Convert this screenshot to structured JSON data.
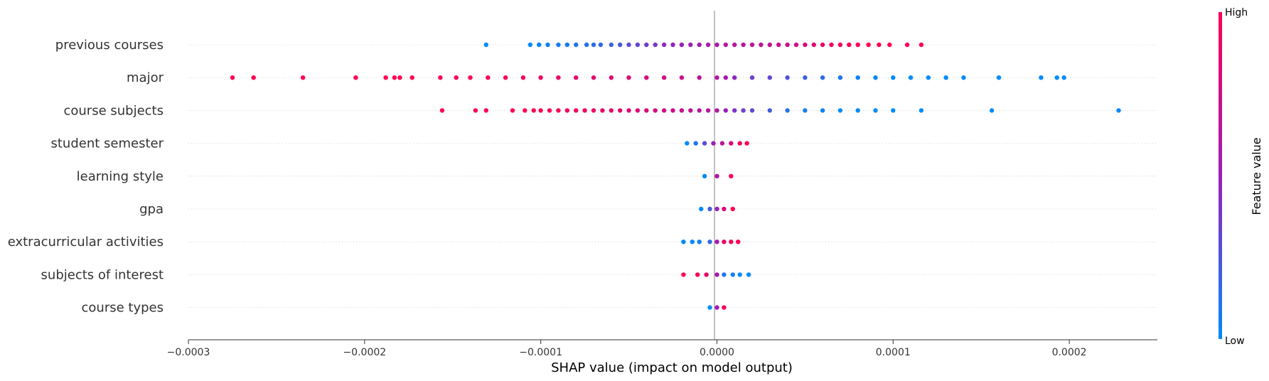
{
  "chart_data": {
    "type": "scatter",
    "subtype": "shap-beeswarm",
    "features": [
      "previous courses",
      "major",
      "course subjects",
      "student semester",
      "learning style",
      "gpa",
      "extracurricular activities",
      "subjects of interest",
      "course types"
    ],
    "xlabel": "SHAP value (impact on model output)",
    "xlim": [
      -0.0003,
      0.00025
    ],
    "xticks": [
      -0.0003,
      -0.0002,
      -0.0001,
      0.0,
      0.0001,
      0.0002
    ],
    "xtick_labels": [
      "−0.0003",
      "−0.0002",
      "−0.0001",
      "0.0000",
      "0.0001",
      "0.0002"
    ],
    "colorbar": {
      "title": "Feature value",
      "high_label": "High",
      "low_label": "Low",
      "low_color": "#008bfb",
      "mid_color": "#9b1fb8",
      "high_color": "#ff0052"
    },
    "grid": "dotted horizontal",
    "series": [
      {
        "values": [
          -0.000131,
          -0.000106,
          -0.000101,
          -9.6e-05,
          -9e-05,
          -8.5e-05,
          -8e-05,
          -7.4e-05,
          -7e-05,
          -6.6e-05,
          -6e-05,
          -5.5e-05,
          -5e-05,
          -4.5e-05,
          -4e-05,
          -3.5e-05,
          -3e-05,
          -2.5e-05,
          -2e-05,
          -1.5e-05,
          -1e-05,
          -5e-06,
          0.0,
          5e-06,
          1e-05,
          1.5e-05,
          2e-05,
          2.5e-05,
          3e-05,
          3.5e-05,
          4e-05,
          4.5e-05,
          5e-05,
          5.5e-05,
          6e-05,
          6.5e-05,
          7e-05,
          7.5e-05,
          8e-05,
          8.6e-05,
          9.2e-05,
          9.8e-05,
          0.000108,
          0.000116
        ],
        "feature_values": [
          0.0,
          0.0,
          0.02,
          0.04,
          0.06,
          0.08,
          0.1,
          0.12,
          0.14,
          0.16,
          0.2,
          0.24,
          0.28,
          0.32,
          0.36,
          0.4,
          0.44,
          0.47,
          0.5,
          0.52,
          0.54,
          0.56,
          0.58,
          0.6,
          0.62,
          0.64,
          0.66,
          0.68,
          0.7,
          0.72,
          0.74,
          0.76,
          0.8,
          0.84,
          0.88,
          0.92,
          0.94,
          0.96,
          0.98,
          1.0,
          1.0,
          1.0,
          1.0,
          1.0
        ]
      },
      {
        "values": [
          -0.000275,
          -0.000263,
          -0.000235,
          -0.000205,
          -0.000188,
          -0.000183,
          -0.00018,
          -0.000173,
          -0.000157,
          -0.000148,
          -0.00014,
          -0.00013,
          -0.00012,
          -0.00011,
          -0.0001,
          -9e-05,
          -8e-05,
          -7e-05,
          -6e-05,
          -5e-05,
          -4e-05,
          -3e-05,
          -2e-05,
          -1e-05,
          0.0,
          5e-06,
          1e-05,
          2e-05,
          3e-05,
          4e-05,
          5e-05,
          6e-05,
          7e-05,
          8e-05,
          9e-05,
          0.0001,
          0.00011,
          0.00012,
          0.00013,
          0.00014,
          0.00016,
          0.000184,
          0.000193,
          0.000197
        ],
        "feature_values": [
          1.0,
          1.0,
          1.0,
          1.0,
          1.0,
          1.0,
          1.0,
          1.0,
          1.0,
          1.0,
          1.0,
          0.98,
          0.96,
          0.94,
          0.92,
          0.9,
          0.88,
          0.86,
          0.84,
          0.82,
          0.8,
          0.76,
          0.72,
          0.68,
          0.6,
          0.55,
          0.45,
          0.35,
          0.3,
          0.25,
          0.2,
          0.15,
          0.1,
          0.05,
          0.02,
          0.0,
          0.0,
          0.0,
          0.0,
          0.0,
          0.0,
          0.0,
          0.0,
          0.0
        ]
      },
      {
        "values": [
          -0.000156,
          -0.000137,
          -0.000131,
          -0.000116,
          -0.000109,
          -0.000104,
          -0.0001,
          -9.5e-05,
          -9e-05,
          -8.5e-05,
          -8e-05,
          -7.5e-05,
          -7e-05,
          -6.5e-05,
          -6e-05,
          -5.5e-05,
          -5e-05,
          -4.5e-05,
          -4e-05,
          -3.5e-05,
          -3e-05,
          -2.5e-05,
          -2e-05,
          -1.5e-05,
          -1e-05,
          -5e-06,
          0.0,
          5e-06,
          1e-05,
          1.5e-05,
          2e-05,
          3e-05,
          4e-05,
          5e-05,
          6e-05,
          7e-05,
          8e-05,
          9e-05,
          0.0001,
          0.000116,
          0.000156,
          0.000228
        ],
        "feature_values": [
          1.0,
          1.0,
          1.0,
          1.0,
          1.0,
          1.0,
          1.0,
          0.98,
          0.96,
          0.95,
          0.94,
          0.93,
          0.92,
          0.9,
          0.88,
          0.86,
          0.84,
          0.82,
          0.8,
          0.78,
          0.76,
          0.74,
          0.72,
          0.7,
          0.68,
          0.65,
          0.6,
          0.5,
          0.4,
          0.35,
          0.3,
          0.2,
          0.12,
          0.06,
          0.02,
          0.0,
          0.0,
          0.0,
          0.0,
          0.0,
          0.0,
          0.0
        ]
      },
      {
        "values": [
          -1.7e-05,
          -1.2e-05,
          -7e-06,
          -2e-06,
          3e-06,
          8e-06,
          1.3e-05,
          1.7e-05
        ],
        "feature_values": [
          0.0,
          0.1,
          0.3,
          0.5,
          0.65,
          0.8,
          0.92,
          1.0
        ]
      },
      {
        "values": [
          -7e-06,
          0.0,
          8e-06
        ],
        "feature_values": [
          0.0,
          0.6,
          1.0
        ]
      },
      {
        "values": [
          -9e-06,
          -4e-06,
          0.0,
          4e-06,
          9e-06
        ],
        "feature_values": [
          0.0,
          0.2,
          0.5,
          0.8,
          1.0
        ]
      },
      {
        "values": [
          -1.9e-05,
          -1.4e-05,
          -1e-05,
          -4e-06,
          0.0,
          4e-06,
          8e-06,
          1.2e-05
        ],
        "feature_values": [
          0.0,
          0.0,
          0.05,
          0.15,
          0.55,
          0.9,
          0.95,
          1.0
        ]
      },
      {
        "values": [
          -1.9e-05,
          -1.1e-05,
          -6e-06,
          0.0,
          4e-06,
          9e-06,
          1.3e-05,
          1.8e-05
        ],
        "feature_values": [
          1.0,
          0.95,
          0.9,
          0.55,
          0.1,
          0.05,
          0.0,
          0.0
        ]
      },
      {
        "values": [
          -4e-06,
          0.0,
          4e-06
        ],
        "feature_values": [
          0.0,
          0.55,
          1.0
        ]
      }
    ]
  }
}
